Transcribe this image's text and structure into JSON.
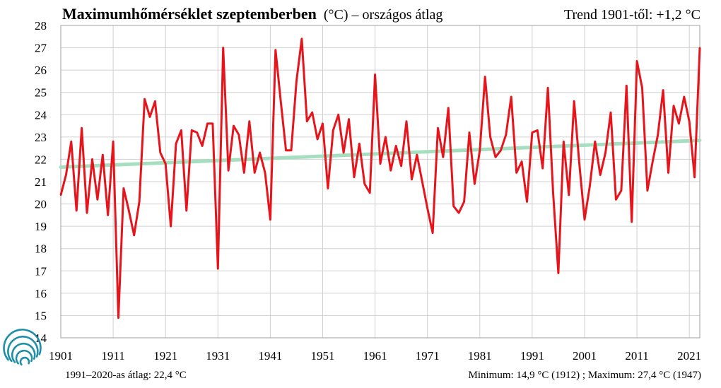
{
  "title_main": "Maximumhőmérséklet szeptemberben",
  "title_rest": "(°C) – országos  átlag",
  "trend_text": "Trend 1901-től: +1,2 °C",
  "footer_left": "1991–2020-as átlag:  22,4 °C",
  "footer_right": "Minimum:  14,9 °C (1912)  ; Maximum:  27,4 °C (1947)",
  "colors": {
    "series": "#e8141b",
    "trend": "#a6dfc0",
    "grid": "#d0d0d0",
    "logo": "#1f8fa8"
  },
  "logo_icon": "hungarian-meteorological-service-logo-icon",
  "chart_data": {
    "type": "line",
    "xlim": [
      1901,
      2023
    ],
    "ylim": [
      14,
      28
    ],
    "x_ticks": [
      1901,
      1911,
      1921,
      1931,
      1941,
      1951,
      1961,
      1971,
      1981,
      1991,
      2001,
      2011,
      2021
    ],
    "y_ticks": [
      14,
      15,
      16,
      17,
      18,
      19,
      20,
      21,
      22,
      23,
      24,
      25,
      26,
      27,
      28
    ],
    "grid": true,
    "legend": "none",
    "series": [
      {
        "x": [
          1901,
          1902,
          1903,
          1904,
          1905,
          1906,
          1907,
          1908,
          1909,
          1910,
          1911,
          1912,
          1913,
          1914,
          1915,
          1916,
          1917,
          1918,
          1919,
          1920,
          1921,
          1922,
          1923,
          1924,
          1925,
          1926,
          1927,
          1928,
          1929,
          1930,
          1931,
          1932,
          1933,
          1934,
          1935,
          1936,
          1937,
          1938,
          1939,
          1940,
          1941,
          1942,
          1943,
          1944,
          1945,
          1946,
          1947,
          1948,
          1949,
          1950,
          1951,
          1952,
          1953,
          1954,
          1955,
          1956,
          1957,
          1958,
          1959,
          1960,
          1961,
          1962,
          1963,
          1964,
          1965,
          1966,
          1967,
          1968,
          1969,
          1970,
          1971,
          1972,
          1973,
          1974,
          1975,
          1976,
          1977,
          1978,
          1979,
          1980,
          1981,
          1982,
          1983,
          1984,
          1985,
          1986,
          1987,
          1988,
          1989,
          1990,
          1991,
          1992,
          1993,
          1994,
          1995,
          1996,
          1997,
          1998,
          1999,
          2000,
          2001,
          2002,
          2003,
          2004,
          2005,
          2006,
          2007,
          2008,
          2009,
          2010,
          2011,
          2012,
          2013,
          2014,
          2015,
          2016,
          2017,
          2018,
          2019,
          2020,
          2021,
          2022,
          2023
        ],
        "values": [
          20.4,
          21.3,
          22.8,
          19.7,
          23.4,
          19.6,
          22.0,
          20.2,
          22.2,
          19.5,
          22.8,
          14.9,
          20.7,
          19.7,
          18.6,
          20.1,
          24.7,
          23.9,
          24.6,
          22.3,
          21.8,
          19.0,
          22.7,
          23.3,
          19.7,
          23.3,
          23.2,
          22.6,
          23.6,
          23.6,
          17.1,
          27.0,
          21.5,
          23.5,
          23.1,
          21.4,
          23.7,
          21.4,
          22.3,
          21.4,
          19.3,
          26.9,
          24.6,
          22.4,
          22.4,
          25.5,
          27.4,
          23.7,
          24.1,
          22.9,
          23.6,
          20.7,
          23.3,
          24.0,
          22.3,
          23.8,
          21.2,
          22.7,
          20.9,
          20.5,
          25.8,
          21.8,
          23.0,
          21.5,
          22.6,
          21.7,
          23.7,
          21.1,
          22.2,
          21.0,
          19.8,
          18.7,
          23.4,
          22.1,
          24.3,
          19.9,
          19.6,
          20.1,
          23.2,
          20.9,
          22.4,
          25.7,
          23.0,
          22.1,
          22.4,
          23.1,
          24.8,
          21.4,
          21.9,
          20.1,
          23.2,
          23.3,
          21.6,
          25.2,
          20.5,
          16.9,
          22.8,
          20.4,
          24.6,
          21.8,
          19.3,
          20.8,
          22.8,
          21.3,
          22.3,
          24.1,
          20.2,
          20.6,
          25.3,
          19.2,
          26.4,
          25.2,
          20.6,
          21.9,
          23.1,
          25.1,
          21.4,
          24.4,
          23.6,
          24.8,
          23.7,
          21.2,
          27.0
        ]
      }
    ],
    "trend_line": {
      "x": [
        1901,
        2023
      ],
      "y": [
        21.65,
        22.85
      ]
    }
  }
}
